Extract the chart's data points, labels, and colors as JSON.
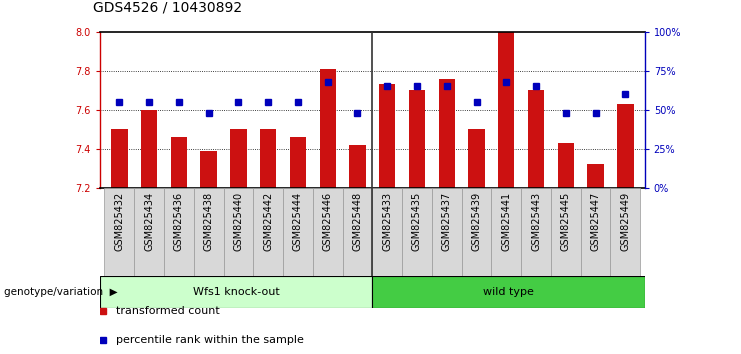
{
  "title": "GDS4526 / 10430892",
  "samples": [
    "GSM825432",
    "GSM825434",
    "GSM825436",
    "GSM825438",
    "GSM825440",
    "GSM825442",
    "GSM825444",
    "GSM825446",
    "GSM825448",
    "GSM825433",
    "GSM825435",
    "GSM825437",
    "GSM825439",
    "GSM825441",
    "GSM825443",
    "GSM825445",
    "GSM825447",
    "GSM825449"
  ],
  "red_values": [
    7.5,
    7.6,
    7.46,
    7.39,
    7.5,
    7.5,
    7.46,
    7.81,
    7.42,
    7.73,
    7.7,
    7.76,
    7.5,
    8.0,
    7.7,
    7.43,
    7.32,
    7.63
  ],
  "blue_values": [
    55,
    55,
    55,
    48,
    55,
    55,
    55,
    68,
    48,
    65,
    65,
    65,
    55,
    68,
    65,
    48,
    48,
    60
  ],
  "ymin": 7.2,
  "ymax": 8.0,
  "y2min": 0,
  "y2max": 100,
  "yticks": [
    7.2,
    7.4,
    7.6,
    7.8,
    8.0
  ],
  "y2ticks": [
    0,
    25,
    50,
    75,
    100
  ],
  "y2ticklabels": [
    "0%",
    "25%",
    "50%",
    "75%",
    "100%"
  ],
  "group_ko_label": "Wfs1 knock-out",
  "group_wt_label": "wild type",
  "group_ko_count": 9,
  "group_wt_count": 9,
  "group_label_text": "genotype/variation",
  "legend_red": "transformed count",
  "legend_blue": "percentile rank within the sample",
  "bar_color": "#cc1111",
  "dot_color": "#0000bb",
  "ko_color": "#ccffcc",
  "wt_color": "#44cc44",
  "separator_color": "#333333",
  "title_fontsize": 10,
  "tick_fontsize": 7,
  "legend_fontsize": 8,
  "group_fontsize": 8
}
